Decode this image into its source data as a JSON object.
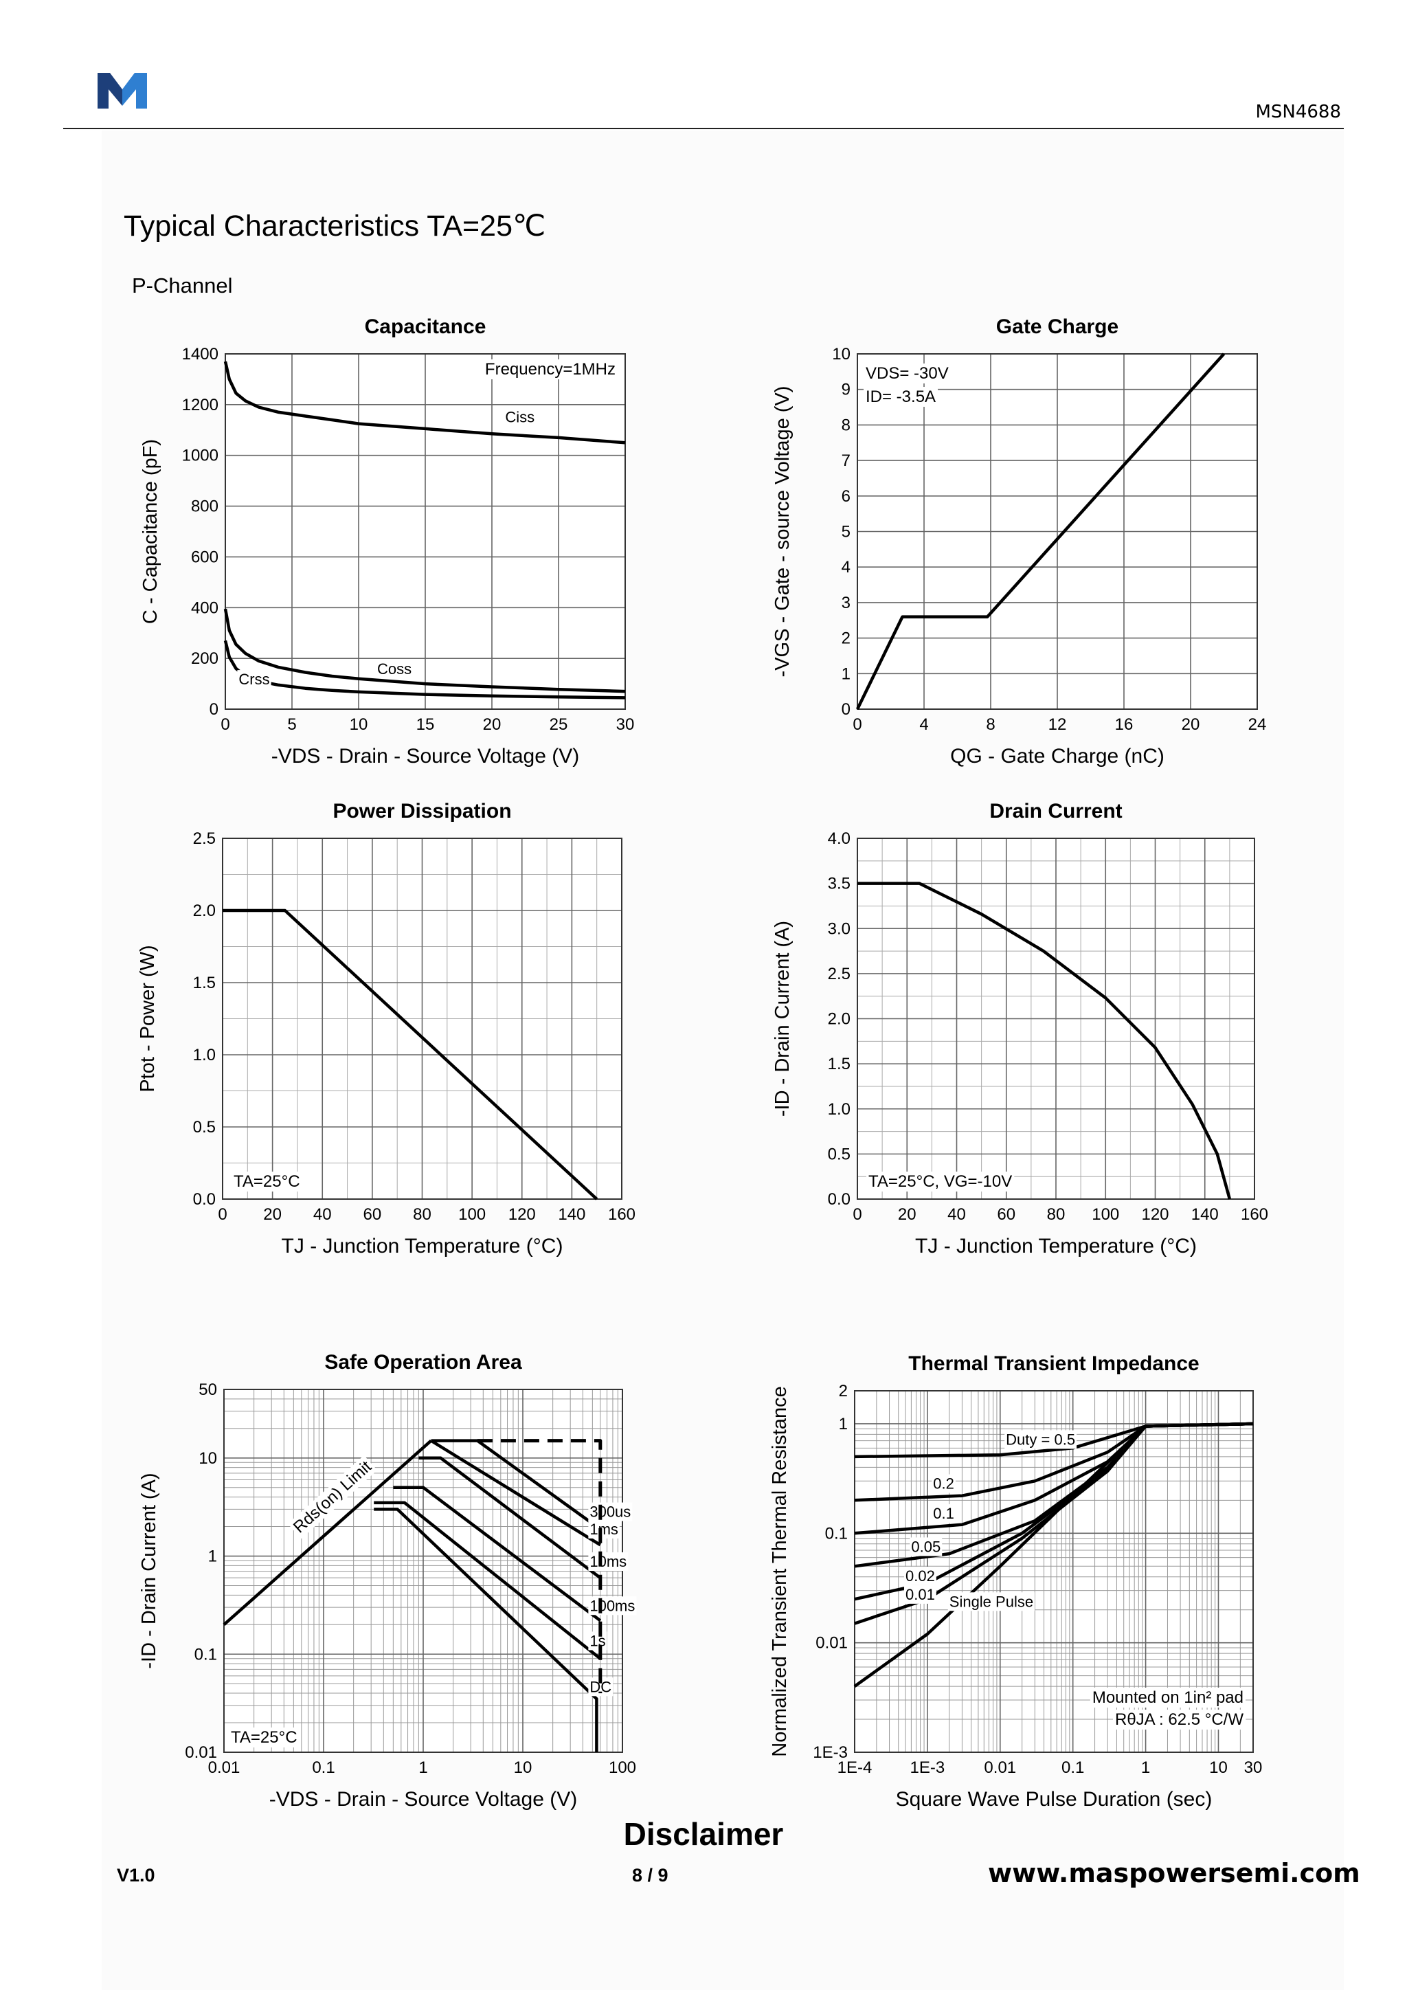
{
  "header": {
    "doc_id": "MSN4688",
    "logo_colors": {
      "left": "#1d3f7a",
      "right": "#2f7fd1"
    }
  },
  "section_title": "Typical Characteristics TA=25℃",
  "subtitle": "P-Channel",
  "footer": {
    "disclaimer": "Disclaimer",
    "version": "V1.0",
    "page": "8 / 9",
    "website": "www.maspowersemi.com"
  },
  "chart_data": [
    {
      "id": "capacitance",
      "type": "line",
      "title": "Capacitance",
      "xlabel": "-VDS - Drain - Source Voltage (V)",
      "ylabel": "C - Capacitance (pF)",
      "xlim": [
        0,
        30
      ],
      "ylim": [
        0,
        1400
      ],
      "xticks": [
        0,
        5,
        10,
        15,
        20,
        25,
        30
      ],
      "yticks": [
        0,
        200,
        400,
        600,
        800,
        1000,
        1200,
        1400
      ],
      "annotations": [
        "Frequency=1MHz"
      ],
      "series": [
        {
          "name": "Ciss",
          "x": [
            0,
            0.3,
            0.8,
            1.5,
            2.5,
            4,
            6,
            8,
            10,
            15,
            20,
            25,
            30
          ],
          "y": [
            1370,
            1300,
            1245,
            1215,
            1190,
            1170,
            1155,
            1140,
            1125,
            1105,
            1085,
            1070,
            1050
          ]
        },
        {
          "name": "Coss",
          "x": [
            0,
            0.3,
            0.8,
            1.5,
            2.5,
            4,
            6,
            8,
            10,
            15,
            20,
            25,
            30
          ],
          "y": [
            395,
            310,
            255,
            220,
            190,
            165,
            145,
            130,
            120,
            100,
            88,
            78,
            70
          ]
        },
        {
          "name": "Crss",
          "x": [
            0,
            0.3,
            0.8,
            1.5,
            2.5,
            4,
            6,
            8,
            10,
            15,
            20,
            25,
            30
          ],
          "y": [
            270,
            205,
            160,
            130,
            110,
            95,
            82,
            74,
            68,
            58,
            52,
            48,
            45
          ]
        }
      ]
    },
    {
      "id": "gate-charge",
      "type": "line",
      "title": "Gate Charge",
      "xlabel": "QG - Gate Charge (nC)",
      "ylabel": "-VGS - Gate - source Voltage (V)",
      "xlim": [
        0,
        24
      ],
      "ylim": [
        0,
        10
      ],
      "xticks": [
        0,
        4,
        8,
        12,
        16,
        20,
        24
      ],
      "yticks": [
        0,
        1,
        2,
        3,
        4,
        5,
        6,
        7,
        8,
        9,
        10
      ],
      "annotations": [
        "VDS= -30V",
        "ID= -3.5A"
      ],
      "series": [
        {
          "name": "VGS",
          "x": [
            0,
            2.7,
            7.8,
            22
          ],
          "y": [
            0,
            2.6,
            2.6,
            10
          ]
        }
      ]
    },
    {
      "id": "power-dissipation",
      "type": "line",
      "title": "Power Dissipation",
      "xlabel": "TJ - Junction Temperature (°C)",
      "ylabel": "Ptot - Power (W)",
      "xlim": [
        0,
        160
      ],
      "ylim": [
        0,
        2.5
      ],
      "xticks": [
        0,
        20,
        40,
        60,
        80,
        100,
        120,
        140,
        160
      ],
      "yticks": [
        "0.0",
        "0.5",
        "1.0",
        "1.5",
        "2.0",
        "2.5"
      ],
      "annotations": [
        "TA=25°C"
      ],
      "series": [
        {
          "name": "Ptot",
          "x": [
            0,
            25,
            150
          ],
          "y": [
            2.0,
            2.0,
            0
          ]
        }
      ]
    },
    {
      "id": "drain-current",
      "type": "line",
      "title": "Drain Current",
      "xlabel": "TJ - Junction Temperature (°C)",
      "ylabel": "-ID - Drain Current (A)",
      "xlim": [
        0,
        160
      ],
      "ylim": [
        0,
        4.0
      ],
      "xticks": [
        0,
        20,
        40,
        60,
        80,
        100,
        120,
        140,
        160
      ],
      "yticks": [
        "0.0",
        "0.5",
        "1.0",
        "1.5",
        "2.0",
        "2.5",
        "3.0",
        "3.5",
        "4.0"
      ],
      "annotations": [
        "TA=25°C, VG=-10V"
      ],
      "series": [
        {
          "name": "ID",
          "x": [
            0,
            25,
            50,
            75,
            100,
            120,
            135,
            145,
            150
          ],
          "y": [
            3.5,
            3.5,
            3.16,
            2.75,
            2.23,
            1.68,
            1.05,
            0.5,
            0
          ]
        }
      ]
    },
    {
      "id": "safe-operation-area",
      "type": "line",
      "title": "Safe Operation Area",
      "xlabel": "-VDS - Drain - Source Voltage (V)",
      "ylabel": "-ID - Drain Current (A)",
      "xscale": "log",
      "yscale": "log",
      "xlim": [
        0.01,
        100
      ],
      "ylim": [
        0.01,
        50
      ],
      "xticks": [
        "0.01",
        "0.1",
        "1",
        "10",
        "100"
      ],
      "yticks": [
        "0.01",
        "0.1",
        "1",
        "10",
        "50"
      ],
      "annotations": [
        "TA=25°C",
        "Rds(on) Limit"
      ],
      "series": [
        {
          "name": "Rds(on) Limit",
          "x": [
            0.01,
            1.2
          ],
          "y": [
            0.2,
            15
          ]
        },
        {
          "name": "300us",
          "x": [
            1.2,
            3.5,
            55
          ],
          "y": [
            15,
            15,
            2
          ]
        },
        {
          "name": "1ms",
          "x": [
            1.2,
            60
          ],
          "y": [
            15,
            1.3
          ]
        },
        {
          "name": "10ms",
          "x": [
            0.9,
            1.5,
            60
          ],
          "y": [
            10,
            10,
            0.6
          ]
        },
        {
          "name": "100ms",
          "x": [
            0.5,
            1.0,
            60
          ],
          "y": [
            5,
            5,
            0.22
          ]
        },
        {
          "name": "1s",
          "x": [
            0.32,
            0.65,
            60
          ],
          "y": [
            3.5,
            3.5,
            0.09
          ]
        },
        {
          "name": "DC",
          "x": [
            0.32,
            0.55,
            55,
            55
          ],
          "y": [
            3.0,
            3.0,
            0.035,
            0.01
          ]
        },
        {
          "name": "Limit (dashed)",
          "x": [
            3.5,
            60,
            60
          ],
          "y": [
            15,
            15,
            0.04
          ]
        }
      ]
    },
    {
      "id": "thermal-transient-impedance",
      "type": "line",
      "title": "Thermal Transient Impedance",
      "xlabel": "Square Wave Pulse Duration (sec)",
      "ylabel": "Normalized Transient Thermal Resistance",
      "xscale": "log",
      "yscale": "log",
      "xlim": [
        0.0001,
        30
      ],
      "ylim": [
        0.001,
        2
      ],
      "xticks": [
        "1E-4",
        "1E-3",
        "0.01",
        "0.1",
        "1",
        "10",
        "30"
      ],
      "yticks": [
        "1E-3",
        "0.01",
        "0.1",
        "1",
        "2"
      ],
      "annotations": [
        "Mounted on 1in² pad",
        "RθJA : 62.5 °C/W"
      ],
      "series": [
        {
          "name": "Duty = 0.5",
          "x": [
            0.0001,
            0.01,
            0.1,
            1,
            30
          ],
          "y": [
            0.5,
            0.52,
            0.6,
            0.95,
            1.0
          ]
        },
        {
          "name": "0.2",
          "x": [
            0.0001,
            0.003,
            0.03,
            0.3,
            1,
            30
          ],
          "y": [
            0.2,
            0.22,
            0.3,
            0.55,
            0.95,
            1.0
          ]
        },
        {
          "name": "0.1",
          "x": [
            0.0001,
            0.003,
            0.03,
            0.3,
            1,
            30
          ],
          "y": [
            0.1,
            0.12,
            0.2,
            0.45,
            0.95,
            1.0
          ]
        },
        {
          "name": "0.05",
          "x": [
            0.0001,
            0.002,
            0.03,
            0.3,
            1,
            30
          ],
          "y": [
            0.05,
            0.065,
            0.13,
            0.4,
            0.95,
            1.0
          ]
        },
        {
          "name": "0.02",
          "x": [
            0.0001,
            0.001,
            0.02,
            0.3,
            1,
            30
          ],
          "y": [
            0.025,
            0.035,
            0.1,
            0.38,
            0.95,
            1.0
          ]
        },
        {
          "name": "0.01",
          "x": [
            0.0001,
            0.001,
            0.02,
            0.3,
            1,
            30
          ],
          "y": [
            0.015,
            0.025,
            0.09,
            0.37,
            0.95,
            1.0
          ]
        },
        {
          "name": "Single Pulse",
          "x": [
            0.0001,
            0.001,
            0.01,
            0.1,
            1,
            30
          ],
          "y": [
            0.004,
            0.012,
            0.05,
            0.22,
            0.95,
            1.0
          ]
        }
      ]
    }
  ]
}
